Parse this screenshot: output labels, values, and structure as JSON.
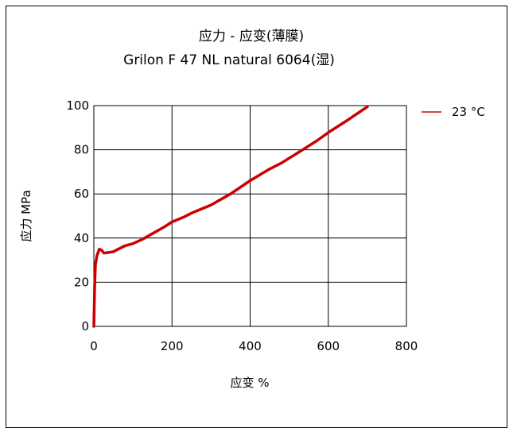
{
  "chart_data": {
    "type": "line",
    "title": "应力 - 应变(薄膜)",
    "subtitle": "Grilon F 47 NL natural 6064(湿)",
    "xlabel": "应变 %",
    "ylabel": "应力 MPa",
    "xlim": [
      0,
      800
    ],
    "ylim": [
      0,
      100
    ],
    "x_ticks": [
      "0",
      "200",
      "400",
      "600",
      "800"
    ],
    "y_ticks": [
      "0",
      "20",
      "40",
      "60",
      "80",
      "100"
    ],
    "grid": true,
    "legend_position": "top-right",
    "series": [
      {
        "name": "23 °C",
        "color": "#cc0000",
        "points": [
          [
            0,
            0
          ],
          [
            2,
            18
          ],
          [
            4,
            28
          ],
          [
            8,
            32
          ],
          [
            14,
            35
          ],
          [
            20,
            34.5
          ],
          [
            26,
            33.2
          ],
          [
            35,
            33.4
          ],
          [
            50,
            33.8
          ],
          [
            60,
            34.8
          ],
          [
            80,
            36.5
          ],
          [
            100,
            37.5
          ],
          [
            125,
            39.5
          ],
          [
            150,
            42
          ],
          [
            180,
            45
          ],
          [
            200,
            47.3
          ],
          [
            230,
            49.5
          ],
          [
            250,
            51.3
          ],
          [
            300,
            55
          ],
          [
            350,
            60
          ],
          [
            400,
            66
          ],
          [
            450,
            71.3
          ],
          [
            480,
            74
          ],
          [
            530,
            79.5
          ],
          [
            570,
            84
          ],
          [
            600,
            87.8
          ],
          [
            650,
            93.5
          ],
          [
            700,
            99.5
          ]
        ]
      }
    ]
  }
}
